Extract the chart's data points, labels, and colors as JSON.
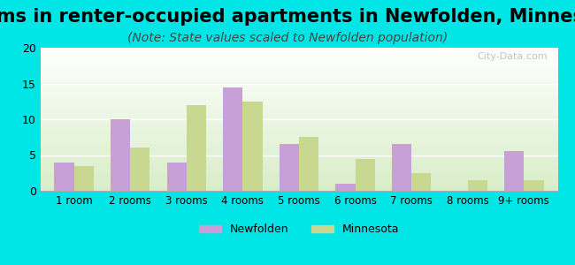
{
  "title": "Rooms in renter-occupied apartments in Newfolden, Minnesota",
  "subtitle": "(Note: State values scaled to Newfolden population)",
  "categories": [
    "1 room",
    "2 rooms",
    "3 rooms",
    "4 rooms",
    "5 rooms",
    "6 rooms",
    "7 rooms",
    "8 rooms",
    "9+ rooms"
  ],
  "newfolden_values": [
    4,
    10,
    4,
    14.5,
    6.5,
    1,
    6.5,
    0,
    5.5
  ],
  "minnesota_values": [
    3.5,
    6,
    12,
    12.5,
    7.5,
    4.5,
    2.5,
    1.5,
    1.5
  ],
  "newfolden_color": "#c8a0d8",
  "minnesota_color": "#c8d890",
  "background_color": "#00e5e5",
  "plot_bg_start": "#e8f5e0",
  "plot_bg_end": "#ffffff",
  "ylim": [
    0,
    20
  ],
  "yticks": [
    0,
    5,
    10,
    15,
    20
  ],
  "bar_width": 0.35,
  "title_fontsize": 15,
  "subtitle_fontsize": 10,
  "legend_labels": [
    "Newfolden",
    "Minnesota"
  ],
  "watermark": "City-Data.com"
}
